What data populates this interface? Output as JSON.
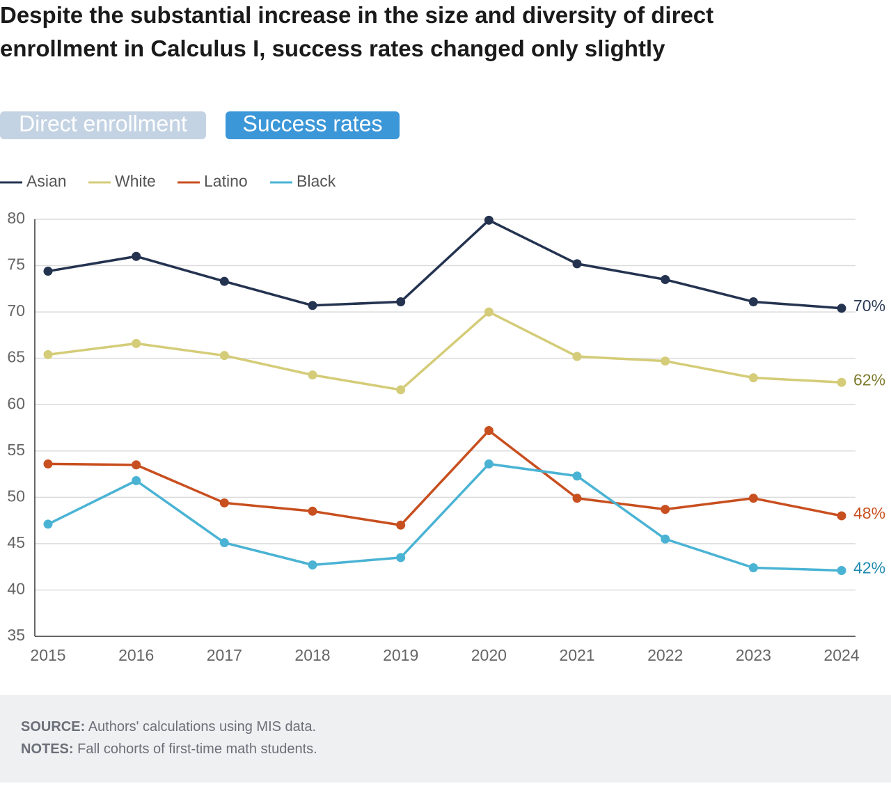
{
  "title": "Despite the substantial increase in the size and diversity of direct enrollment in Calculus I, success rates changed only slightly",
  "tabs": [
    {
      "label": "Direct enrollment",
      "active": false
    },
    {
      "label": "Success rates",
      "active": true
    }
  ],
  "chart_data": {
    "type": "line",
    "categories": [
      "2015",
      "2016",
      "2017",
      "2018",
      "2019",
      "2020",
      "2021",
      "2022",
      "2023",
      "2024"
    ],
    "ylim": [
      35,
      80
    ],
    "yticks": [
      35,
      40,
      45,
      50,
      55,
      60,
      65,
      70,
      75,
      80
    ],
    "grid": true,
    "legend": "top-left",
    "series": [
      {
        "name": "Asian",
        "color": "#243350",
        "label_color": "#2b3a55",
        "values": [
          74.4,
          76.0,
          73.3,
          70.7,
          71.1,
          79.9,
          75.2,
          73.5,
          71.1,
          70.4
        ],
        "value_labels": [
          null,
          null,
          null,
          null,
          null,
          null,
          null,
          null,
          null,
          "70%"
        ]
      },
      {
        "name": "White",
        "color": "#d4cc78",
        "label_color": "#7d7a2a",
        "values": [
          65.4,
          66.6,
          65.3,
          63.2,
          61.6,
          70.0,
          65.2,
          64.7,
          62.9,
          62.4
        ],
        "value_labels": [
          null,
          null,
          null,
          null,
          null,
          null,
          null,
          null,
          null,
          "62%"
        ]
      },
      {
        "name": "Latino",
        "color": "#c84f1f",
        "label_color": "#c8501e",
        "values": [
          53.6,
          53.5,
          49.4,
          48.5,
          47.0,
          57.2,
          49.9,
          48.7,
          49.9,
          48.0
        ],
        "value_labels": [
          null,
          null,
          null,
          null,
          null,
          null,
          null,
          null,
          null,
          "48%"
        ]
      },
      {
        "name": "Black",
        "color": "#4ab3d4",
        "label_color": "#1f8ab0",
        "values": [
          47.1,
          51.8,
          45.1,
          42.7,
          43.5,
          53.6,
          52.3,
          45.5,
          42.4,
          42.1
        ],
        "value_labels": [
          null,
          null,
          null,
          null,
          null,
          null,
          null,
          null,
          null,
          "42%"
        ]
      }
    ]
  },
  "footer": {
    "source": {
      "label": "SOURCE:",
      "text": "Authors' calculations using MIS data."
    },
    "notes": {
      "label": "NOTES:",
      "text": "Fall cohorts of first-time math students."
    }
  }
}
